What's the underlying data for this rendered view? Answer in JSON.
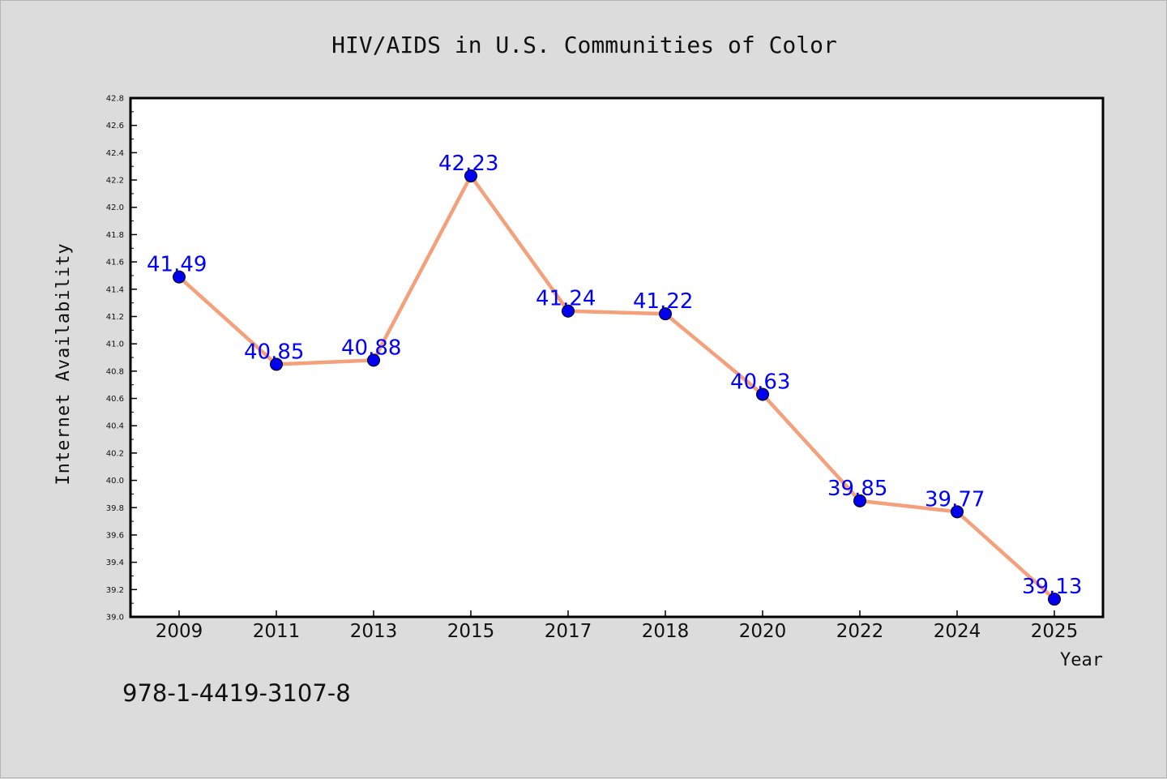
{
  "chart_data": {
    "type": "line",
    "title": "HIV/AIDS in U.S. Communities of Color",
    "xlabel": "Year",
    "ylabel": "Internet Availability",
    "categories": [
      "2009",
      "2011",
      "2013",
      "2015",
      "2017",
      "2018",
      "2020",
      "2022",
      "2024",
      "2025"
    ],
    "series": [
      {
        "values": [
          41.49,
          40.85,
          40.88,
          42.23,
          41.24,
          41.22,
          40.63,
          39.85,
          39.77,
          39.13
        ],
        "labels": [
          "41.49",
          "40.85",
          "40.88",
          "42.23",
          "41.24",
          "41.22",
          "40.63",
          "39.85",
          "39.77",
          "39.13"
        ],
        "line_color": "#f4a07a",
        "marker_color": "#0000ee"
      }
    ],
    "ylim": [
      39.0,
      42.8
    ],
    "yticks": [
      "39.0",
      "39.2",
      "39.4",
      "39.6",
      "39.8",
      "40.0",
      "40.2",
      "40.4",
      "40.6",
      "40.8",
      "41.0",
      "41.2",
      "41.4",
      "41.6",
      "41.8",
      "42.0",
      "42.2",
      "42.4",
      "42.6",
      "42.8"
    ],
    "grid": false,
    "legend": "none",
    "label_color": "#0000ff"
  },
  "footer": {
    "isbn": "978-1-4419-3107-8"
  }
}
